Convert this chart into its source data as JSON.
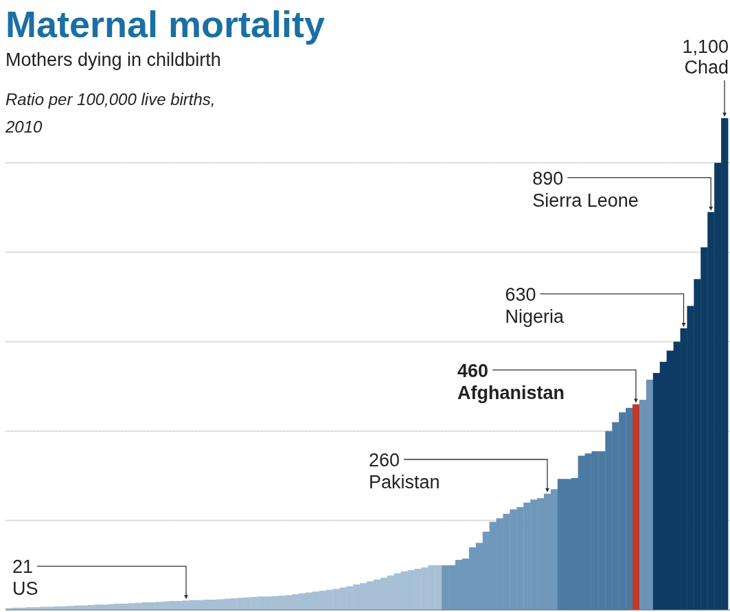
{
  "chart_data": {
    "type": "bar",
    "title": "Maternal mortality",
    "subtitle": "Mothers dying in childbirth",
    "ylabel": "Ratio per 100,000 live births, 2010",
    "categories": [
      null,
      null,
      null,
      null,
      null,
      null,
      null,
      null,
      null,
      null,
      null,
      null,
      null,
      null,
      null,
      null,
      null,
      null,
      null,
      null,
      null,
      null,
      null,
      null,
      null,
      null,
      null,
      null,
      null,
      null,
      null,
      null,
      null,
      null,
      null,
      null,
      null,
      null,
      null,
      null,
      null,
      null,
      null,
      null,
      null,
      null,
      null,
      null,
      null,
      null,
      null,
      null,
      null,
      null,
      null,
      null,
      null,
      null,
      null,
      null,
      null,
      null,
      null,
      null,
      null,
      null,
      null,
      null,
      null,
      null,
      null,
      null,
      null,
      null,
      null,
      null,
      null,
      null,
      null,
      null,
      null,
      null,
      null,
      null,
      null,
      null,
      null,
      null,
      null,
      null,
      null,
      null,
      null,
      null,
      null,
      null,
      null,
      null,
      null,
      null,
      null,
      null,
      null,
      null,
      null,
      null
    ],
    "annotations": [
      "US",
      "Pakistan",
      "Afghanistan",
      "Nigeria",
      "Sierra Leone",
      "Chad"
    ],
    "values": [
      4,
      5,
      5,
      6,
      6,
      7,
      7,
      8,
      8,
      9,
      10,
      10,
      11,
      12,
      12,
      13,
      14,
      14,
      15,
      16,
      17,
      17,
      18,
      19,
      20,
      20,
      21,
      22,
      22,
      23,
      23,
      24,
      25,
      26,
      27,
      28,
      29,
      30,
      30,
      31,
      32,
      33,
      35,
      37,
      39,
      41,
      43,
      45,
      47,
      50,
      53,
      57,
      60,
      64,
      68,
      72,
      77,
      82,
      86,
      89,
      92,
      95,
      100,
      100,
      100,
      100,
      112,
      115,
      140,
      150,
      175,
      197,
      205,
      215,
      225,
      230,
      240,
      247,
      250,
      260,
      270,
      293,
      293,
      295,
      345,
      350,
      355,
      355,
      400,
      420,
      442,
      452,
      460,
      470,
      515,
      530,
      555,
      580,
      600,
      630,
      680,
      740,
      811,
      890,
      1000,
      1100
    ],
    "value_labels": [
      null,
      null,
      null,
      null,
      null,
      null,
      null,
      null,
      null,
      null,
      null,
      null,
      null,
      null,
      null,
      null,
      null,
      null,
      null,
      null,
      null,
      null,
      null,
      null,
      null,
      null,
      "21",
      null,
      null,
      null,
      null,
      null,
      null,
      null,
      null,
      null,
      null,
      null,
      null,
      null,
      null,
      null,
      null,
      null,
      null,
      null,
      null,
      null,
      null,
      null,
      null,
      null,
      null,
      null,
      null,
      null,
      null,
      null,
      null,
      null,
      null,
      null,
      null,
      null,
      null,
      null,
      null,
      null,
      null,
      null,
      null,
      null,
      null,
      null,
      null,
      null,
      null,
      null,
      null,
      "260",
      null,
      null,
      null,
      null,
      null,
      null,
      null,
      null,
      null,
      null,
      null,
      null,
      "460",
      null,
      null,
      null,
      null,
      null,
      null,
      "630",
      null,
      null,
      null,
      "890",
      null,
      "1,100"
    ],
    "colors": [
      "#a7c0d5",
      "#a7c0d5",
      "#a7c0d5",
      "#a7c0d5",
      "#a7c0d5",
      "#a7c0d5",
      "#a7c0d5",
      "#a7c0d5",
      "#a7c0d5",
      "#a7c0d5",
      "#a7c0d5",
      "#a7c0d5",
      "#a7c0d5",
      "#a7c0d5",
      "#a7c0d5",
      "#a7c0d5",
      "#a7c0d5",
      "#a7c0d5",
      "#a7c0d5",
      "#a7c0d5",
      "#a7c0d5",
      "#a7c0d5",
      "#a7c0d5",
      "#a7c0d5",
      "#a7c0d5",
      "#a7c0d5",
      "#a7c0d5",
      "#a7c0d5",
      "#a7c0d5",
      "#a7c0d5",
      "#a7c0d5",
      "#a7c0d5",
      "#a7c0d5",
      "#a7c0d5",
      "#a7c0d5",
      "#a7c0d5",
      "#a7c0d5",
      "#a7c0d5",
      "#a7c0d5",
      "#a7c0d5",
      "#a7c0d5",
      "#a7c0d5",
      "#a7c0d5",
      "#a7c0d5",
      "#a7c0d5",
      "#a7c0d5",
      "#a7c0d5",
      "#a7c0d5",
      "#a7c0d5",
      "#a7c0d5",
      "#a7c0d5",
      "#a7c0d5",
      "#a7c0d5",
      "#a7c0d5",
      "#a7c0d5",
      "#a7c0d5",
      "#a7c0d5",
      "#a7c0d5",
      "#a7c0d5",
      "#a7c0d5",
      "#a7c0d5",
      "#a7c0d5",
      "#a7c0d5",
      "#a7c0d5",
      "#7098bb",
      "#7098bb",
      "#7098bb",
      "#7098bb",
      "#7098bb",
      "#7098bb",
      "#7098bb",
      "#7098bb",
      "#7098bb",
      "#7098bb",
      "#7098bb",
      "#7098bb",
      "#7098bb",
      "#7098bb",
      "#7098bb",
      "#7098bb",
      "#7098bb",
      "#4d7aa3",
      "#4d7aa3",
      "#4d7aa3",
      "#4d7aa3",
      "#4d7aa3",
      "#4d7aa3",
      "#4d7aa3",
      "#4d7aa3",
      "#4d7aa3",
      "#4d7aa3",
      "#4d7aa3",
      "#c0392b",
      "#6d93b7",
      "#6d93b7",
      "#0d3b63",
      "#0d3b63",
      "#0d3b63",
      "#0d3b63",
      "#0d3b63",
      "#0d3b63",
      "#0d3b63",
      "#0d3b63",
      "#0d3b63",
      "#0d3b63",
      "#0d3b63"
    ],
    "ylim": [
      0,
      1100
    ],
    "yticks": [
      {
        "value": 200,
        "label": null
      },
      {
        "value": 400,
        "label": null
      },
      {
        "value": 600,
        "label": null
      },
      {
        "value": 800,
        "label": null
      },
      {
        "value": 1000,
        "label": null
      }
    ],
    "grid": "y"
  }
}
